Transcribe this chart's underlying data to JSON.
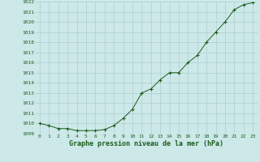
{
  "x": [
    0,
    1,
    2,
    3,
    4,
    5,
    6,
    7,
    8,
    9,
    10,
    11,
    12,
    13,
    14,
    15,
    16,
    17,
    18,
    19,
    20,
    21,
    22,
    23
  ],
  "y": [
    1010.0,
    1009.8,
    1009.5,
    1009.5,
    1009.3,
    1009.3,
    1009.3,
    1009.4,
    1009.8,
    1010.5,
    1011.4,
    1013.0,
    1013.4,
    1014.3,
    1015.0,
    1015.0,
    1016.0,
    1016.7,
    1018.0,
    1019.0,
    1020.0,
    1021.2,
    1021.7,
    1021.9
  ],
  "ylim": [
    1009,
    1022
  ],
  "xlim_min": -0.5,
  "xlim_max": 23.5,
  "yticks": [
    1009,
    1010,
    1011,
    1012,
    1013,
    1014,
    1015,
    1016,
    1017,
    1018,
    1019,
    1020,
    1021,
    1022
  ],
  "xticks": [
    0,
    1,
    2,
    3,
    4,
    5,
    6,
    7,
    8,
    9,
    10,
    11,
    12,
    13,
    14,
    15,
    16,
    17,
    18,
    19,
    20,
    21,
    22,
    23
  ],
  "xlabel": "Graphe pression niveau de la mer (hPa)",
  "line_color": "#1a5c1a",
  "marker": "+",
  "bg_color": "#cce8e8",
  "grid_color": "#a8c8c8",
  "tick_label_color": "#1a5c1a",
  "xlabel_color": "#1a5c1a",
  "tick_fontsize": 4.5,
  "xlabel_fontsize": 6.0,
  "linewidth": 0.7,
  "markersize": 3.5,
  "markeredgewidth": 0.8
}
